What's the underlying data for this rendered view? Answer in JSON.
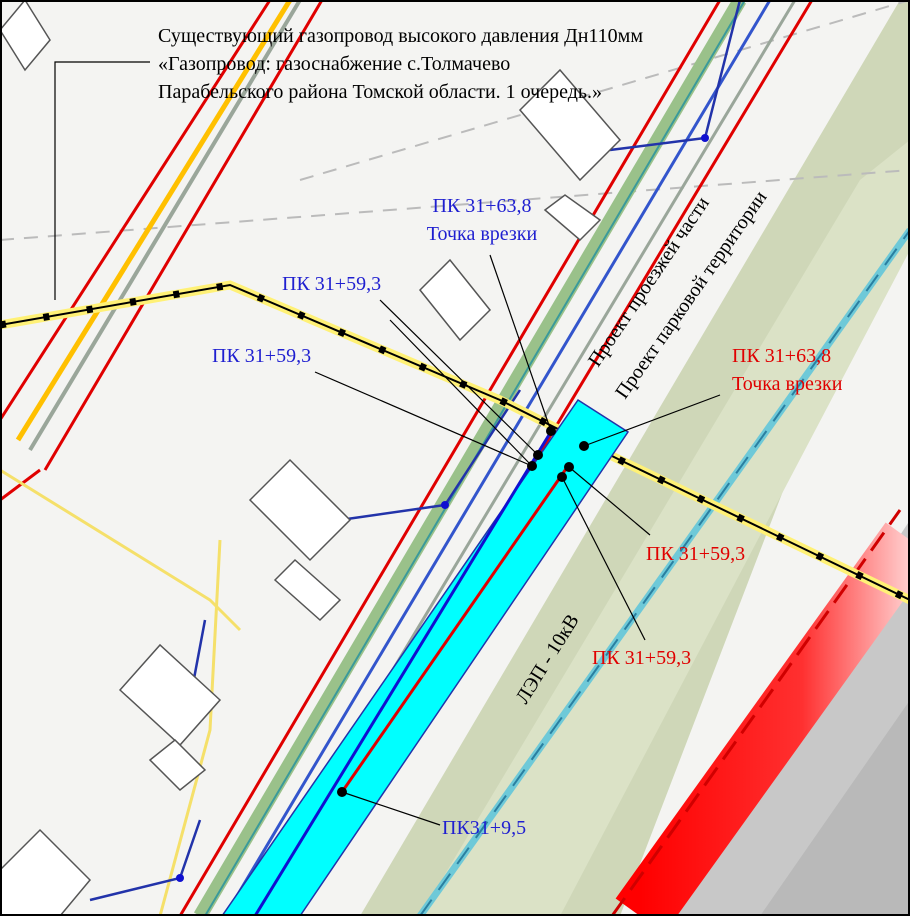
{
  "annotation": {
    "lines": [
      "Существующий газопровод высокого давления Дн110мм",
      "«Газопровод: газоснабжение с.Толмачево",
      "Парабельского района Томской области. 1 очередь.»"
    ]
  },
  "labels": [
    {
      "lines": [
        "ПК 31+63,8",
        "Точка врезки"
      ]
    },
    {
      "lines": [
        "ПК 31+59,3"
      ]
    },
    {
      "lines": [
        "ПК 31+59,3"
      ]
    },
    {
      "lines": [
        "ПК 31+63,8",
        "Точка врезки"
      ]
    },
    {
      "lines": [
        "ПК 31+59,3"
      ]
    },
    {
      "lines": [
        "ПК 31+59,3"
      ]
    },
    {
      "lines": [
        "ПК31+9,5"
      ]
    }
  ],
  "map_labels": [
    "Проект проезжей части",
    "Проект парковой территории",
    "ЛЭП - 10кВ"
  ]
}
